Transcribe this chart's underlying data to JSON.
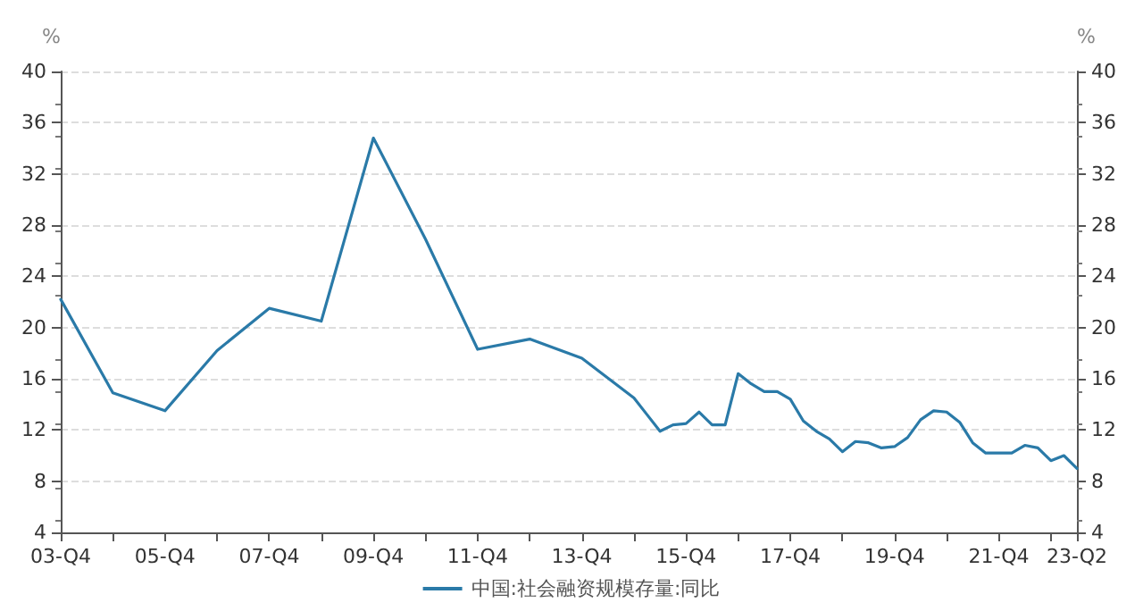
{
  "chart_data": {
    "type": "line",
    "ylabel": "%",
    "y2label": "%",
    "categories": [
      "03-Q4",
      null,
      null,
      null,
      null,
      null,
      null,
      null,
      "05-Q4",
      null,
      null,
      null,
      null,
      null,
      null,
      null,
      "07-Q4",
      null,
      null,
      null,
      null,
      null,
      null,
      null,
      "09-Q4",
      null,
      null,
      null,
      null,
      null,
      null,
      null,
      "11-Q4",
      null,
      null,
      null,
      null,
      null,
      null,
      null,
      "13-Q4",
      null,
      null,
      null,
      null,
      null,
      null,
      null,
      "15-Q4",
      null,
      null,
      null,
      null,
      null,
      null,
      null,
      "17-Q4",
      null,
      null,
      null,
      null,
      null,
      null,
      null,
      "19-Q4",
      null,
      null,
      null,
      null,
      null,
      null,
      null,
      "21-Q4",
      null,
      null,
      null,
      null,
      null,
      "23-Q2"
    ],
    "series": [
      {
        "name": "中国:社会融资规模存量:同比",
        "color": "#2a7aa8",
        "values": [
          22.2,
          null,
          null,
          null,
          14.9,
          null,
          null,
          null,
          13.5,
          null,
          null,
          null,
          18.2,
          null,
          null,
          null,
          21.5,
          null,
          null,
          null,
          20.5,
          null,
          null,
          null,
          34.8,
          null,
          null,
          null,
          26.9,
          null,
          null,
          null,
          18.3,
          null,
          null,
          null,
          19.1,
          null,
          null,
          null,
          17.6,
          null,
          null,
          null,
          14.5,
          13.2,
          11.9,
          12.4,
          12.5,
          13.4,
          12.4,
          12.4,
          16.4,
          15.6,
          15.0,
          15.0,
          14.4,
          12.7,
          11.9,
          11.3,
          10.3,
          11.1,
          11.0,
          10.6,
          10.7,
          11.4,
          12.8,
          13.5,
          13.4,
          12.6,
          11.0,
          10.2,
          10.2,
          10.2,
          10.8,
          10.6,
          9.6,
          10.0,
          9.0
        ]
      }
    ],
    "ylim": [
      4,
      40
    ],
    "yticks": [
      4,
      8,
      12,
      16,
      20,
      24,
      28,
      32,
      36,
      40
    ],
    "y2lim": [
      4,
      40
    ],
    "y2ticks": [
      4,
      8,
      12,
      16,
      20,
      24,
      28,
      32,
      36,
      40
    ],
    "grid": "y",
    "legend": "bottom",
    "marker": "none",
    "line_style": "solid"
  }
}
